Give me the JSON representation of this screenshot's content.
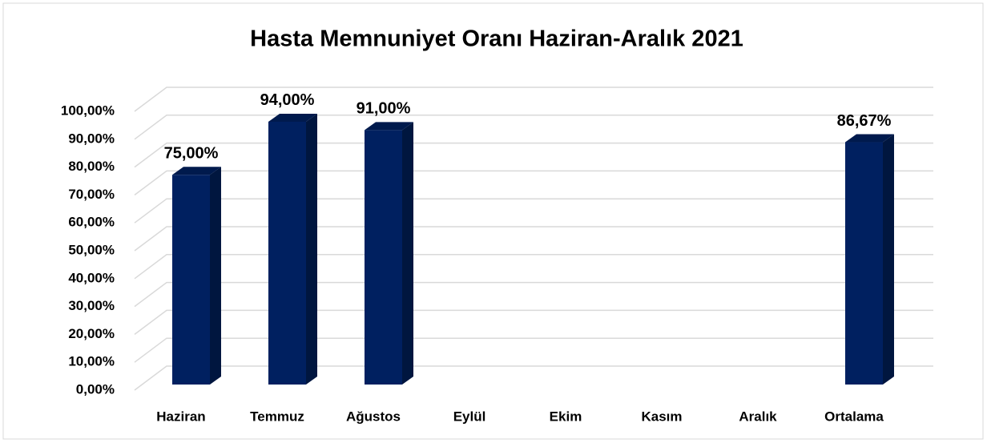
{
  "chart_data": {
    "type": "bar3d",
    "title": "Hasta Memnuniyet Oranı Haziran-Aralık 2021",
    "categories": [
      "Haziran",
      "Temmuz",
      "Ağustos",
      "Eylül",
      "Ekim",
      "Kasım",
      "Aralık",
      "Ortalama"
    ],
    "values": [
      75,
      94,
      91,
      null,
      null,
      null,
      null,
      86.67
    ],
    "value_labels": [
      "75,00%",
      "94,00%",
      "91,00%",
      null,
      null,
      null,
      null,
      "86,67%"
    ],
    "color": "#002060",
    "ylim": [
      0,
      100
    ],
    "yticks": [
      {
        "value": 0,
        "label": "0,00%"
      },
      {
        "value": 10,
        "label": "10,00%"
      },
      {
        "value": 20,
        "label": "20,00%"
      },
      {
        "value": 30,
        "label": "30,00%"
      },
      {
        "value": 40,
        "label": "40,00%"
      },
      {
        "value": 50,
        "label": "50,00%"
      },
      {
        "value": 60,
        "label": "60,00%"
      },
      {
        "value": 70,
        "label": "70,00%"
      },
      {
        "value": 80,
        "label": "80,00%"
      },
      {
        "value": 90,
        "label": "90,00%"
      },
      {
        "value": 100,
        "label": "100,00%"
      }
    ],
    "grid": true
  }
}
